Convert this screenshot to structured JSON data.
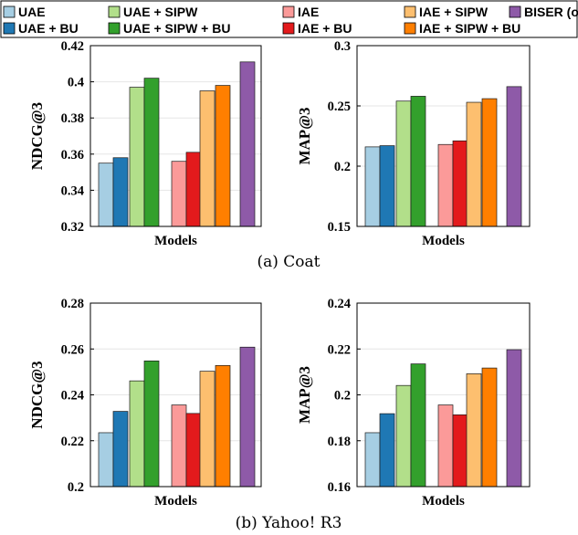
{
  "legend": [
    {
      "label": "UAE",
      "color": "#a6cee3"
    },
    {
      "label": "UAE + BU",
      "color": "#1f78b4"
    },
    {
      "label": "UAE + SIPW",
      "color": "#b2df8a"
    },
    {
      "label": "UAE + SIPW + BU",
      "color": "#33a02c"
    },
    {
      "label": "IAE",
      "color": "#fb9a99"
    },
    {
      "label": "IAE + BU",
      "color": "#e31a1c"
    },
    {
      "label": "IAE + SIPW",
      "color": "#fdbf6f"
    },
    {
      "label": "IAE + SIPW + BU",
      "color": "#ff7f00"
    },
    {
      "label": "BISER (ours)",
      "color": "#8e5aa8"
    }
  ],
  "captions": [
    "(a) Coat",
    "(b) Yahoo! R3"
  ],
  "chart_data": [
    {
      "type": "bar",
      "ylabel": "NDCG@3",
      "xlabel": "Models",
      "ylim": [
        0.32,
        0.42
      ],
      "yticks": [
        "0.32",
        "0.34",
        "0.36",
        "0.38",
        "0.4",
        "0.42"
      ],
      "grid": true,
      "legend": "top (shared)",
      "series": [
        {
          "name": "UAE",
          "values": [
            0.355
          ]
        },
        {
          "name": "UAE + BU",
          "values": [
            0.358
          ]
        },
        {
          "name": "UAE + SIPW",
          "values": [
            0.397
          ]
        },
        {
          "name": "UAE + SIPW + BU",
          "values": [
            0.402
          ]
        },
        {
          "name": "IAE",
          "values": [
            0.356
          ]
        },
        {
          "name": "IAE + BU",
          "values": [
            0.361
          ]
        },
        {
          "name": "IAE + SIPW",
          "values": [
            0.395
          ]
        },
        {
          "name": "IAE + SIPW + BU",
          "values": [
            0.398
          ]
        },
        {
          "name": "BISER (ours)",
          "values": [
            0.411
          ]
        }
      ]
    },
    {
      "type": "bar",
      "ylabel": "MAP@3",
      "xlabel": "Models",
      "ylim": [
        0.15,
        0.3
      ],
      "yticks": [
        "0.15",
        "0.2",
        "0.25",
        "0.3"
      ],
      "grid": true,
      "legend": "top (shared)",
      "series": [
        {
          "name": "UAE",
          "values": [
            0.216
          ]
        },
        {
          "name": "UAE + BU",
          "values": [
            0.217
          ]
        },
        {
          "name": "UAE + SIPW",
          "values": [
            0.254
          ]
        },
        {
          "name": "UAE + SIPW + BU",
          "values": [
            0.258
          ]
        },
        {
          "name": "IAE",
          "values": [
            0.218
          ]
        },
        {
          "name": "IAE + BU",
          "values": [
            0.221
          ]
        },
        {
          "name": "IAE + SIPW",
          "values": [
            0.253
          ]
        },
        {
          "name": "IAE + SIPW + BU",
          "values": [
            0.256
          ]
        },
        {
          "name": "BISER (ours)",
          "values": [
            0.266
          ]
        }
      ]
    },
    {
      "type": "bar",
      "ylabel": "NDCG@3",
      "xlabel": "Models",
      "ylim": [
        0.2,
        0.28
      ],
      "yticks": [
        "0.2",
        "0.22",
        "0.24",
        "0.26",
        "0.28"
      ],
      "grid": true,
      "legend": "top (shared)",
      "series": [
        {
          "name": "UAE",
          "values": [
            0.2235
          ]
        },
        {
          "name": "UAE + BU",
          "values": [
            0.2328
          ]
        },
        {
          "name": "UAE + SIPW",
          "values": [
            0.2461
          ]
        },
        {
          "name": "UAE + SIPW + BU",
          "values": [
            0.2548
          ]
        },
        {
          "name": "IAE",
          "values": [
            0.2356
          ]
        },
        {
          "name": "IAE + BU",
          "values": [
            0.2319
          ]
        },
        {
          "name": "IAE + SIPW",
          "values": [
            0.2503
          ]
        },
        {
          "name": "IAE + SIPW + BU",
          "values": [
            0.2528
          ]
        },
        {
          "name": "BISER (ours)",
          "values": [
            0.2608
          ]
        }
      ]
    },
    {
      "type": "bar",
      "ylabel": "MAP@3",
      "xlabel": "Models",
      "ylim": [
        0.16,
        0.24
      ],
      "yticks": [
        "0.16",
        "0.18",
        "0.2",
        "0.22",
        "0.24"
      ],
      "grid": true,
      "legend": "top (shared)",
      "series": [
        {
          "name": "UAE",
          "values": [
            0.1835
          ]
        },
        {
          "name": "UAE + BU",
          "values": [
            0.1918
          ]
        },
        {
          "name": "UAE + SIPW",
          "values": [
            0.2041
          ]
        },
        {
          "name": "UAE + SIPW + BU",
          "values": [
            0.2135
          ]
        },
        {
          "name": "IAE",
          "values": [
            0.1956
          ]
        },
        {
          "name": "IAE + BU",
          "values": [
            0.1913
          ]
        },
        {
          "name": "IAE + SIPW",
          "values": [
            0.2092
          ]
        },
        {
          "name": "IAE + SIPW + BU",
          "values": [
            0.2117
          ]
        },
        {
          "name": "BISER (ours)",
          "values": [
            0.2197
          ]
        }
      ]
    }
  ]
}
